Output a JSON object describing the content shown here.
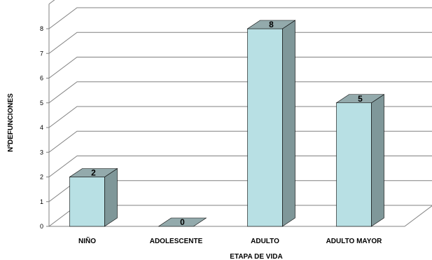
{
  "chart_data": {
    "type": "bar",
    "style": "3d",
    "categories": [
      "NIÑO",
      "ADOLESCENTE",
      "ADULTO",
      "ADULTO MAYOR"
    ],
    "values": [
      2,
      0,
      8,
      5
    ],
    "data_labels": [
      "2",
      "0",
      "8",
      "5"
    ],
    "xlabel": "ETAPA DE VIDA",
    "ylabel": "NºDEFUNCIONES",
    "ylim": [
      0,
      8
    ],
    "yticks": [
      "0",
      "1",
      "2",
      "3",
      "4",
      "5",
      "6",
      "7",
      "8"
    ],
    "grid": true,
    "legend": "none",
    "colors": {
      "bar_front": "#b8e0e4",
      "bar_side": "#7f9799",
      "bar_top": "#93aaac",
      "grid": "#808080"
    }
  }
}
